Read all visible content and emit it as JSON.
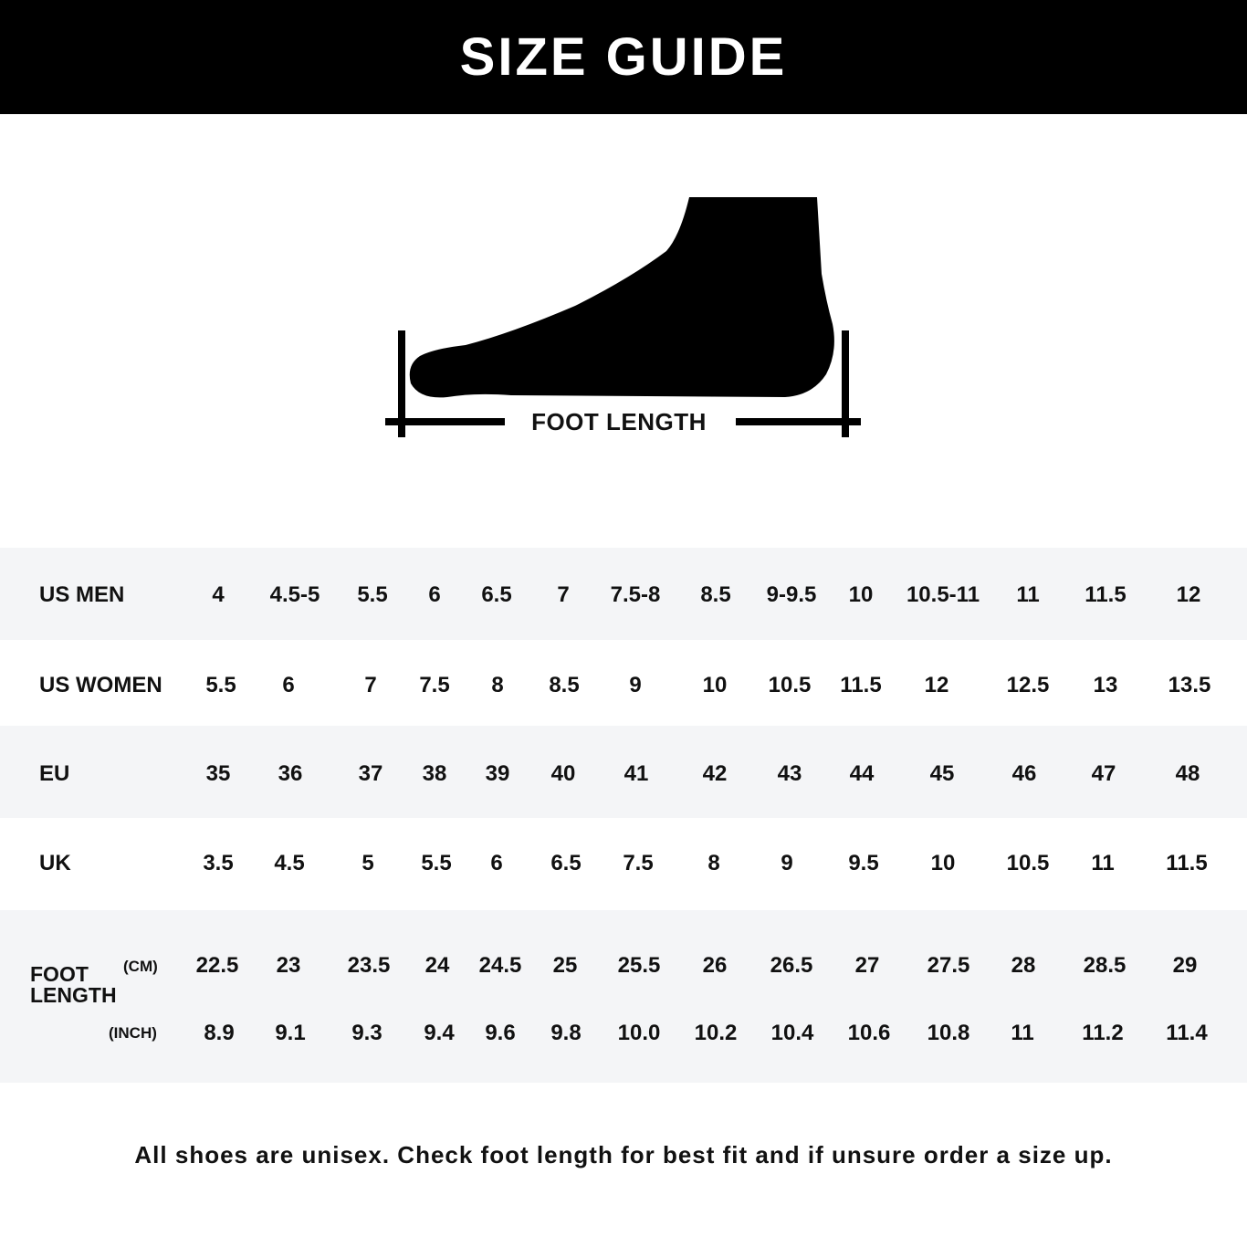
{
  "title": "SIZE GUIDE",
  "diagram": {
    "label": "FOOT LENGTH",
    "icon": "foot-icon"
  },
  "table": {
    "rows": [
      {
        "label": "US MEN",
        "values": [
          "4",
          "4.5-5",
          "5.5",
          "6",
          "6.5",
          "7",
          "7.5-8",
          "8.5",
          "9-9.5",
          "10",
          "10.5-11",
          "11",
          "11.5",
          "12"
        ]
      },
      {
        "label": "US WOMEN",
        "values": [
          "5.5",
          "6",
          "7",
          "7.5",
          "8",
          "8.5",
          "9",
          "10",
          "10.5",
          "11.5",
          "12",
          "12.5",
          "13",
          "13.5"
        ]
      },
      {
        "label": "EU",
        "values": [
          "35",
          "36",
          "37",
          "38",
          "39",
          "40",
          "41",
          "42",
          "43",
          "44",
          "45",
          "46",
          "47",
          "48"
        ]
      },
      {
        "label": "UK",
        "values": [
          "3.5",
          "4.5",
          "5",
          "5.5",
          "6",
          "6.5",
          "7.5",
          "8",
          "9",
          "9.5",
          "10",
          "10.5",
          "11",
          "11.5"
        ]
      }
    ],
    "foot_length": {
      "label_line1": "FOOT",
      "label_line2": "LENGTH",
      "cm_unit": "(CM)",
      "inch_unit": "(INCH)",
      "cm": [
        "22.5",
        "23",
        "23.5",
        "24",
        "24.5",
        "25",
        "25.5",
        "26",
        "26.5",
        "27",
        "27.5",
        "28",
        "28.5",
        "29"
      ],
      "inch": [
        "8.9",
        "9.1",
        "9.3",
        "9.4",
        "9.6",
        "9.8",
        "10.0",
        "10.2",
        "10.4",
        "10.6",
        "10.8",
        "11",
        "11.2",
        "11.4"
      ]
    }
  },
  "footnote": "All shoes are unisex. Check foot length for best fit and if unsure order a size up.",
  "colors": {
    "header_bg": "#000000",
    "band_gray": "#f4f5f7",
    "text": "#111111"
  }
}
